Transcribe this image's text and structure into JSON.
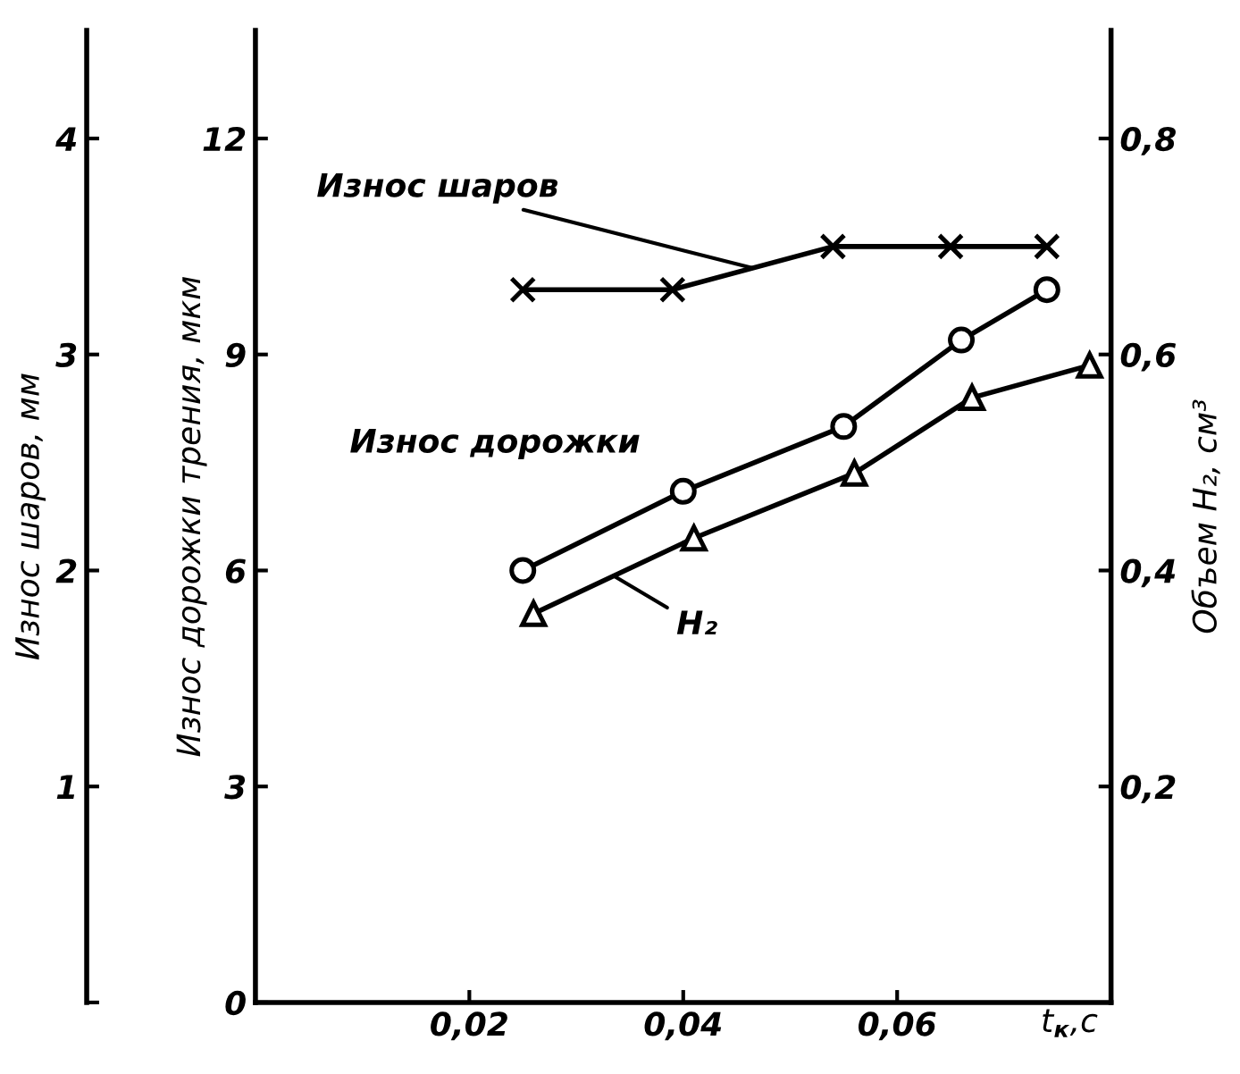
{
  "chart_data": {
    "type": "line",
    "xlabel": "t$_{к}$,с",
    "ylabel": "Износ дорожки трения, мкм",
    "y2label": "Объем H₂, см³",
    "y3label": "Износ шаров, мм",
    "xlim": [
      0,
      0.08
    ],
    "xticks": [
      {
        "value": 0.02,
        "label": "0,02"
      },
      {
        "value": 0.04,
        "label": "0,04"
      },
      {
        "value": 0.06,
        "label": "0,06"
      }
    ],
    "ylim": [
      0,
      13.5
    ],
    "yticks": [
      0,
      3,
      6,
      9,
      12
    ],
    "y2lim": [
      0,
      0.9
    ],
    "y2ticks": [
      {
        "value": 0.2,
        "label": "0,2"
      },
      {
        "value": 0.4,
        "label": "0,4"
      },
      {
        "value": 0.6,
        "label": "0,6"
      },
      {
        "value": 0.8,
        "label": "0,8"
      }
    ],
    "y3lim": [
      0,
      4.5
    ],
    "y3ticks": [
      {
        "value": 0,
        "label": null
      },
      1,
      2,
      3,
      4
    ],
    "grid": false,
    "legend": false,
    "line_style": "solid",
    "series": [
      {
        "name": "Износ шаров",
        "color": "#000000",
        "axis": "y3",
        "marker": "cross",
        "x": [
          0.025,
          0.039,
          0.054,
          0.065,
          0.074
        ],
        "values": [
          3.3,
          3.3,
          3.5,
          3.5,
          3.5
        ]
      },
      {
        "name": "Износ дорожки",
        "color": "#000000",
        "axis": "y",
        "marker": "circle",
        "x": [
          0.025,
          0.04,
          0.055,
          0.066,
          0.074
        ],
        "values": [
          6.0,
          7.1,
          8.0,
          9.2,
          9.9
        ]
      },
      {
        "name": "H₂",
        "color": "#000000",
        "axis": "y2",
        "marker": "triangle",
        "x": [
          0.026,
          0.041,
          0.056,
          0.067,
          0.078
        ],
        "values": [
          0.36,
          0.43,
          0.49,
          0.56,
          0.59
        ]
      }
    ]
  }
}
